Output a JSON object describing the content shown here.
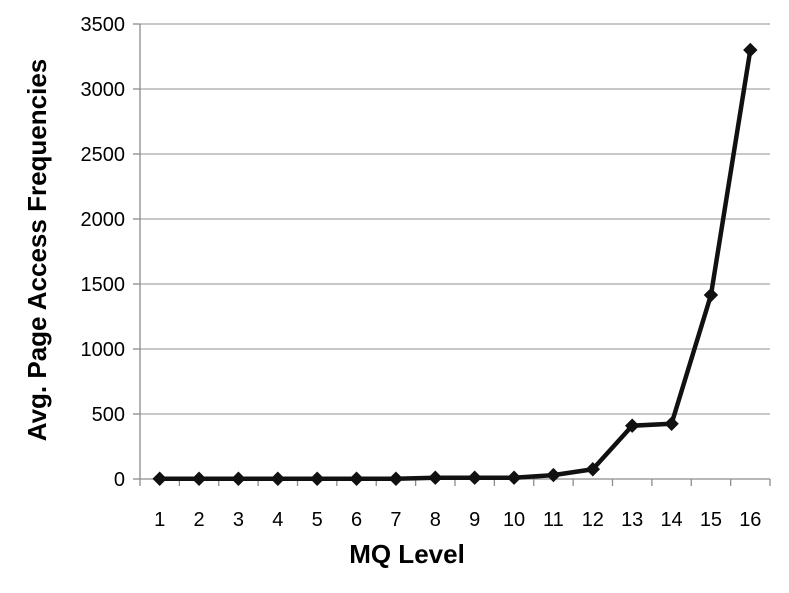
{
  "chart_data": {
    "type": "line",
    "title": "",
    "xlabel": "MQ Level",
    "ylabel": "Avg. Page Access Frequencies",
    "categories": [
      "1",
      "2",
      "3",
      "4",
      "5",
      "6",
      "7",
      "8",
      "9",
      "10",
      "11",
      "12",
      "13",
      "14",
      "15",
      "16"
    ],
    "series": [
      {
        "values": [
          2,
          2,
          2,
          2,
          2,
          2,
          2,
          10,
          10,
          10,
          30,
          75,
          410,
          425,
          1415,
          3300
        ],
        "color": "#111111",
        "marker": "diamond"
      }
    ],
    "ylim": [
      0,
      3500
    ],
    "yticks": [
      0,
      500,
      1000,
      1500,
      2000,
      2500,
      3000,
      3500
    ],
    "grid": true,
    "legend": "none"
  }
}
